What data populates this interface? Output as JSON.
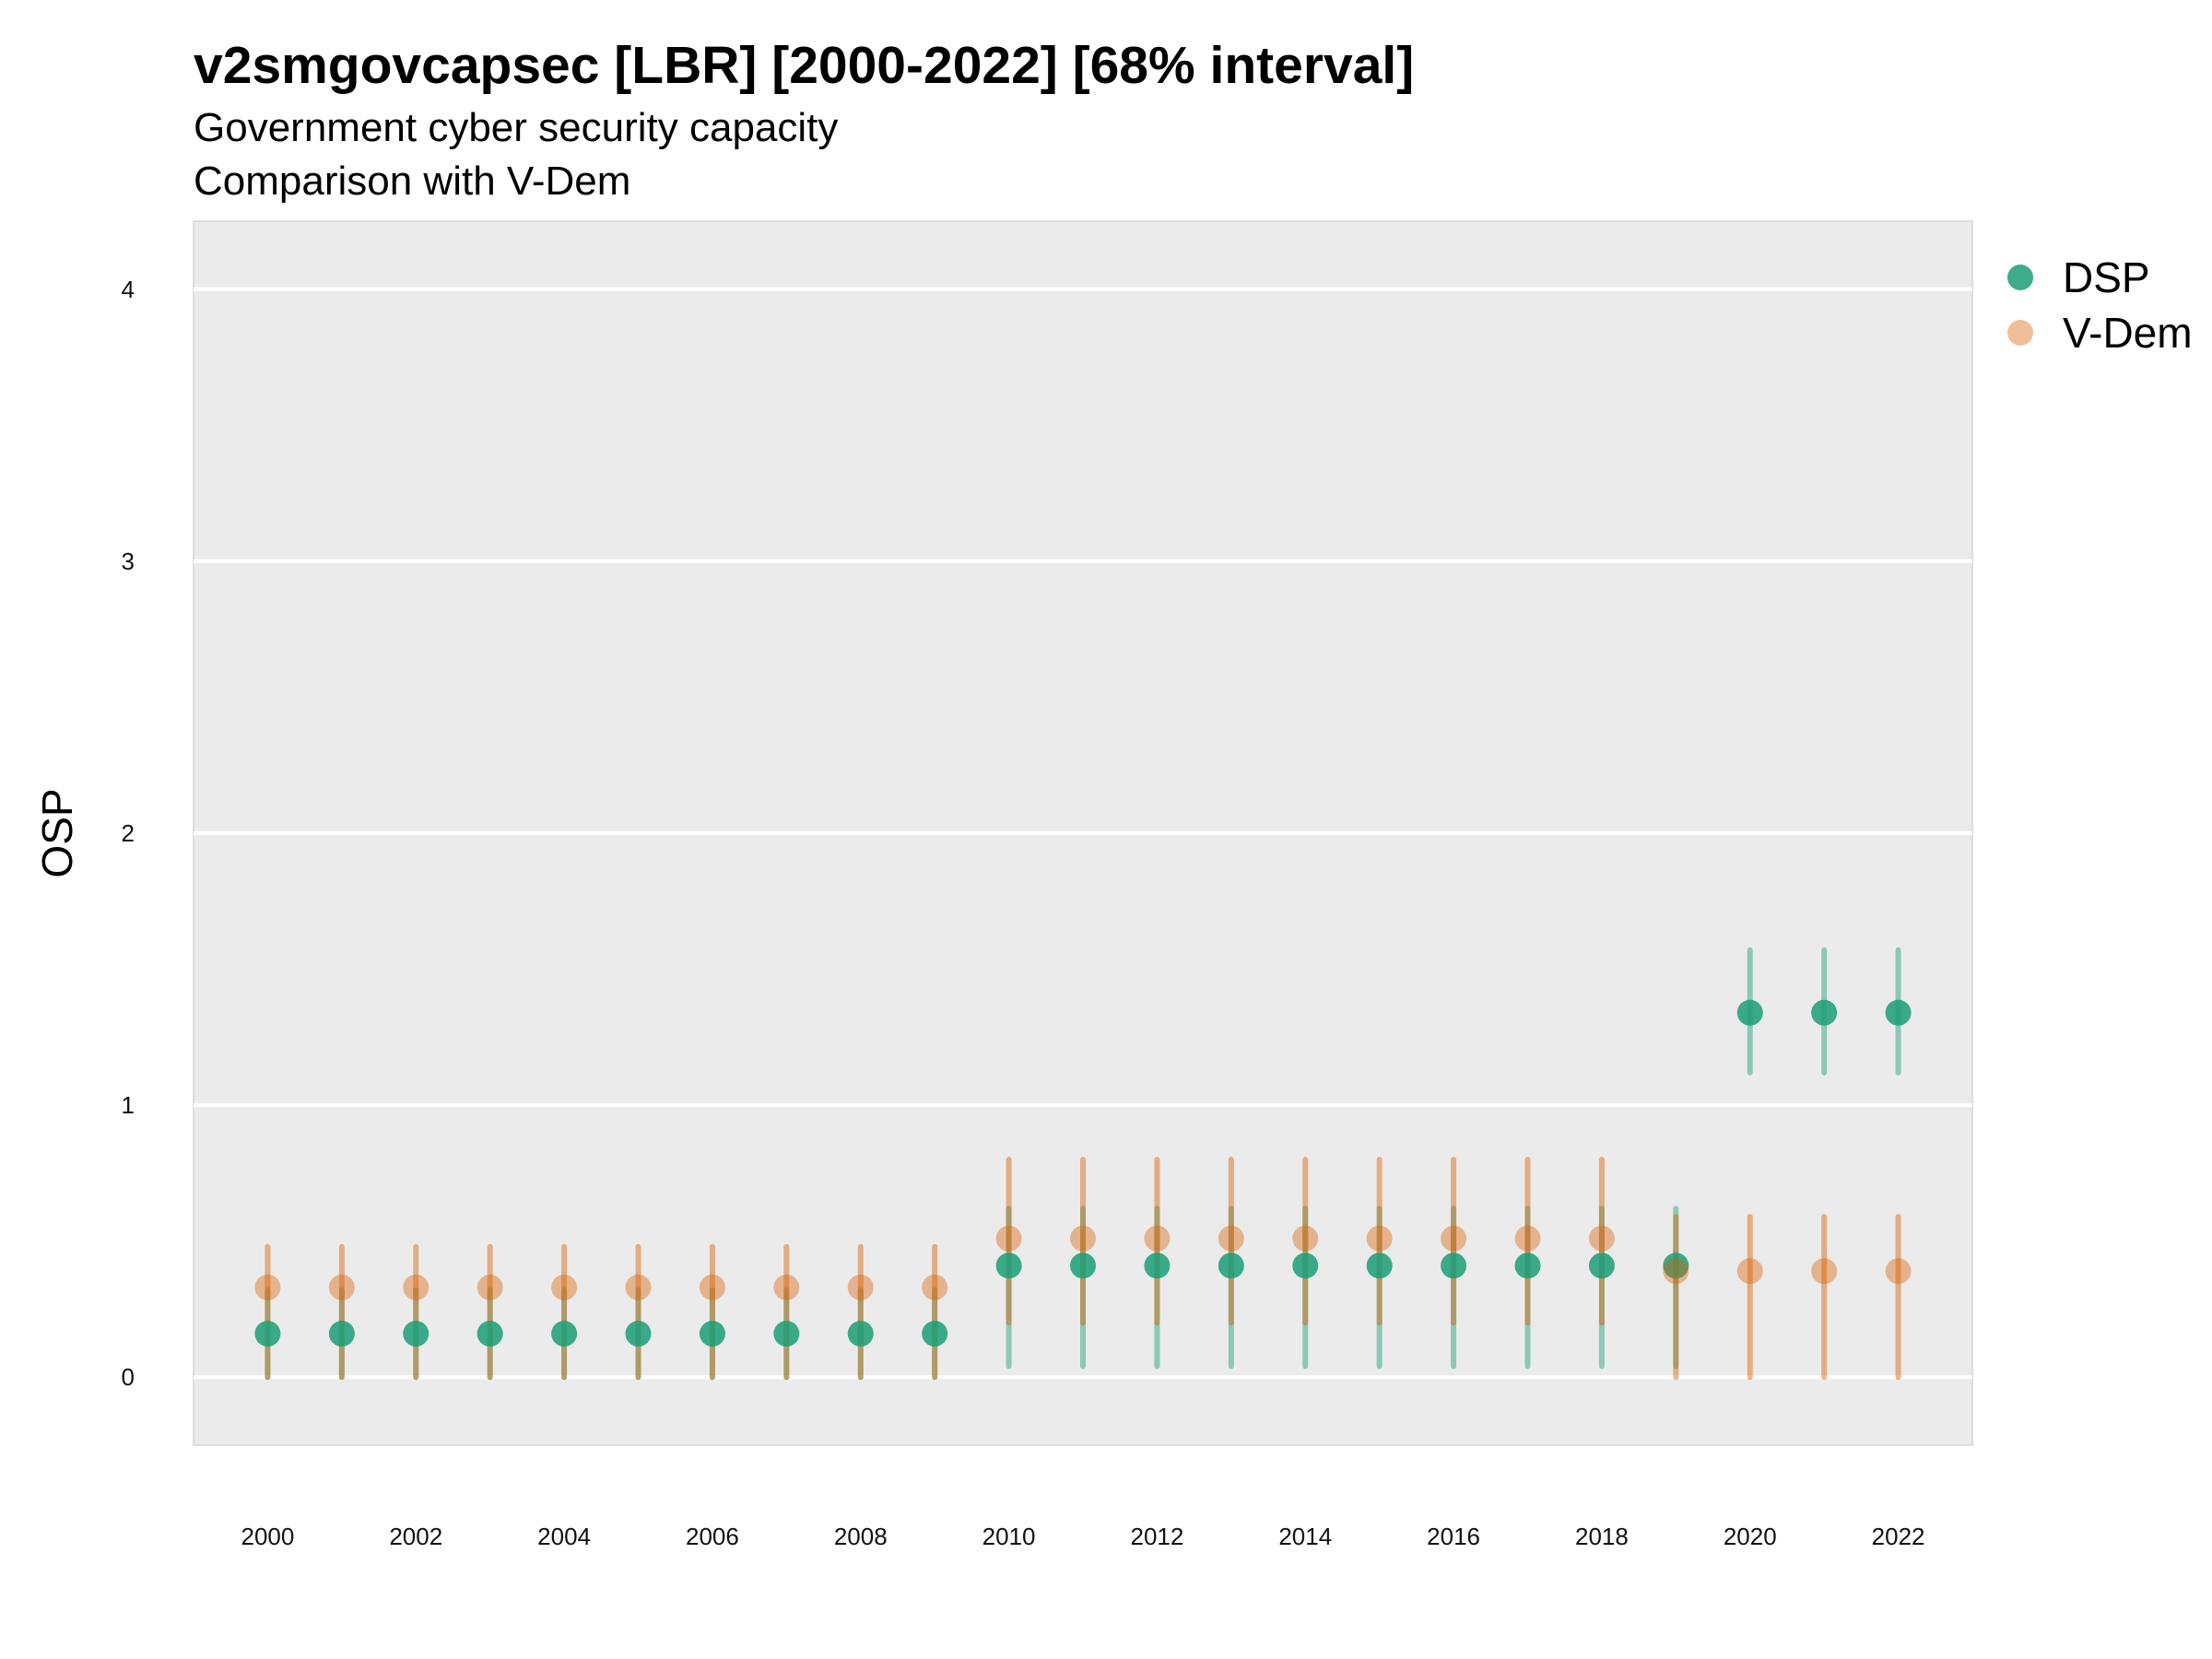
{
  "chart_data": {
    "type": "scatter",
    "title": "v2smgovcapsec [LBR] [2000-2022] [68% interval]",
    "subtitle": "Government cyber security capacity",
    "caption_line": "Comparison with V-Dem",
    "xlabel": "",
    "ylabel": "OSP",
    "xlim": [
      1999,
      2023
    ],
    "ylim": [
      -0.25,
      4.25
    ],
    "x_ticks": [
      "2000",
      "2002",
      "2004",
      "2006",
      "2008",
      "2010",
      "2012",
      "2014",
      "2016",
      "2018",
      "2020",
      "2022"
    ],
    "y_ticks": [
      "0",
      "1",
      "2",
      "3",
      "4"
    ],
    "grid": true,
    "legend_position": "top-right",
    "series": [
      {
        "name": "DSP",
        "color": "#1b9e77",
        "x": [
          2000,
          2001,
          2002,
          2003,
          2004,
          2005,
          2006,
          2007,
          2008,
          2009,
          2010,
          2011,
          2012,
          2013,
          2014,
          2015,
          2016,
          2017,
          2018,
          2019,
          2020,
          2021,
          2022
        ],
        "y": [
          0.16,
          0.16,
          0.16,
          0.16,
          0.16,
          0.16,
          0.16,
          0.16,
          0.16,
          0.16,
          0.41,
          0.41,
          0.41,
          0.41,
          0.41,
          0.41,
          0.41,
          0.41,
          0.41,
          0.41,
          1.34,
          1.34,
          1.34
        ],
        "lower": [
          0.0,
          0.0,
          0.0,
          0.0,
          0.0,
          0.0,
          0.0,
          0.0,
          0.0,
          0.0,
          0.04,
          0.04,
          0.04,
          0.04,
          0.04,
          0.04,
          0.04,
          0.04,
          0.04,
          0.04,
          1.12,
          1.12,
          1.12
        ],
        "upper": [
          0.32,
          0.32,
          0.32,
          0.32,
          0.32,
          0.32,
          0.32,
          0.32,
          0.32,
          0.32,
          0.62,
          0.62,
          0.62,
          0.62,
          0.62,
          0.62,
          0.62,
          0.62,
          0.62,
          0.62,
          1.57,
          1.57,
          1.57
        ]
      },
      {
        "name": "V-Dem",
        "color": "#d95f02",
        "x": [
          2000,
          2001,
          2002,
          2003,
          2004,
          2005,
          2006,
          2007,
          2008,
          2009,
          2010,
          2011,
          2012,
          2013,
          2014,
          2015,
          2016,
          2017,
          2018,
          2019,
          2020,
          2021,
          2022
        ],
        "y": [
          0.33,
          0.33,
          0.33,
          0.33,
          0.33,
          0.33,
          0.33,
          0.33,
          0.33,
          0.33,
          0.51,
          0.51,
          0.51,
          0.51,
          0.51,
          0.51,
          0.51,
          0.51,
          0.51,
          0.39,
          0.39,
          0.39,
          0.39
        ],
        "lower": [
          0.0,
          0.0,
          0.0,
          0.0,
          0.0,
          0.0,
          0.0,
          0.0,
          0.0,
          0.0,
          0.2,
          0.2,
          0.2,
          0.2,
          0.2,
          0.2,
          0.2,
          0.2,
          0.2,
          0.0,
          0.0,
          0.0,
          0.0
        ],
        "upper": [
          0.48,
          0.48,
          0.48,
          0.48,
          0.48,
          0.48,
          0.48,
          0.48,
          0.48,
          0.48,
          0.8,
          0.8,
          0.8,
          0.8,
          0.8,
          0.8,
          0.8,
          0.8,
          0.8,
          0.59,
          0.59,
          0.59,
          0.59
        ]
      }
    ]
  }
}
